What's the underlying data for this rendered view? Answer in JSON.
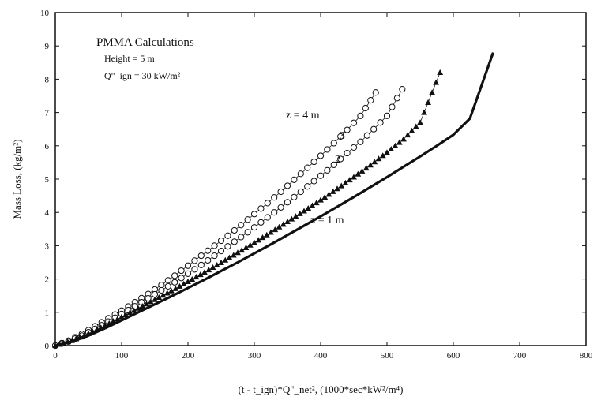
{
  "chart_data": {
    "type": "scatter",
    "xlabel": "(t - t_ign)*Q\"_net², (1000*sec*kW²/m⁴)",
    "ylabel": "Mass Loss, (kg/m²)",
    "xlim": [
      0,
      800
    ],
    "ylim": [
      0,
      10
    ],
    "xticks": [
      0,
      100,
      200,
      300,
      400,
      500,
      600,
      700,
      800
    ],
    "yticks": [
      0,
      1,
      2,
      3,
      4,
      5,
      6,
      7,
      8,
      9,
      10
    ],
    "grid": false,
    "annotations": {
      "title": "PMMA Calculations",
      "height": "Height = 5 m",
      "q_ign": "Q\"_ign = 30 kW/m²"
    },
    "series": [
      {
        "name": "z = 4 m",
        "label": "z = 4 m",
        "marker": "circle",
        "x": [
          0,
          20,
          40,
          60,
          80,
          100,
          120,
          140,
          160,
          180,
          200,
          220,
          240,
          260,
          280,
          300,
          320,
          340,
          360,
          380,
          400,
          420,
          440,
          460,
          483
        ],
        "y": [
          0,
          0.15,
          0.35,
          0.58,
          0.82,
          1.05,
          1.3,
          1.55,
          1.82,
          2.1,
          2.4,
          2.7,
          3.0,
          3.3,
          3.62,
          3.95,
          4.28,
          4.62,
          4.98,
          5.34,
          5.7,
          6.08,
          6.48,
          6.9,
          7.6
        ]
      },
      {
        "name": "z = 3 m",
        "label": "3",
        "marker": "circle",
        "x": [
          0,
          20,
          40,
          60,
          80,
          100,
          120,
          140,
          160,
          180,
          200,
          220,
          240,
          260,
          280,
          300,
          320,
          340,
          360,
          380,
          400,
          420,
          440,
          460,
          480,
          500,
          523
        ],
        "y": [
          0,
          0.12,
          0.3,
          0.5,
          0.72,
          0.95,
          1.18,
          1.42,
          1.66,
          1.9,
          2.16,
          2.42,
          2.7,
          2.98,
          3.26,
          3.55,
          3.85,
          4.15,
          4.46,
          4.78,
          5.1,
          5.43,
          5.78,
          6.12,
          6.5,
          6.9,
          7.7
        ]
      },
      {
        "name": "z = 2 m",
        "label": "2",
        "marker": "triangle",
        "x": [
          0,
          25,
          50,
          75,
          100,
          125,
          150,
          175,
          200,
          225,
          250,
          275,
          300,
          325,
          350,
          375,
          400,
          425,
          450,
          475,
          500,
          525,
          550,
          580
        ],
        "y": [
          0,
          0.15,
          0.36,
          0.6,
          0.86,
          1.12,
          1.38,
          1.64,
          1.92,
          2.2,
          2.49,
          2.79,
          3.09,
          3.4,
          3.72,
          4.04,
          4.37,
          4.71,
          5.06,
          5.42,
          5.8,
          6.2,
          6.7,
          8.2
        ]
      },
      {
        "name": "z = 1 m",
        "label": "z = 1 m",
        "marker": "line",
        "x": [
          0,
          25,
          50,
          75,
          100,
          125,
          150,
          175,
          200,
          225,
          250,
          275,
          300,
          325,
          350,
          375,
          400,
          425,
          450,
          475,
          500,
          525,
          550,
          575,
          600,
          625,
          660
        ],
        "y": [
          0,
          0.12,
          0.3,
          0.52,
          0.76,
          1.0,
          1.24,
          1.48,
          1.73,
          1.98,
          2.24,
          2.5,
          2.77,
          3.04,
          3.32,
          3.6,
          3.88,
          4.17,
          4.46,
          4.76,
          5.06,
          5.37,
          5.68,
          6.0,
          6.33,
          6.82,
          8.8
        ]
      }
    ]
  }
}
